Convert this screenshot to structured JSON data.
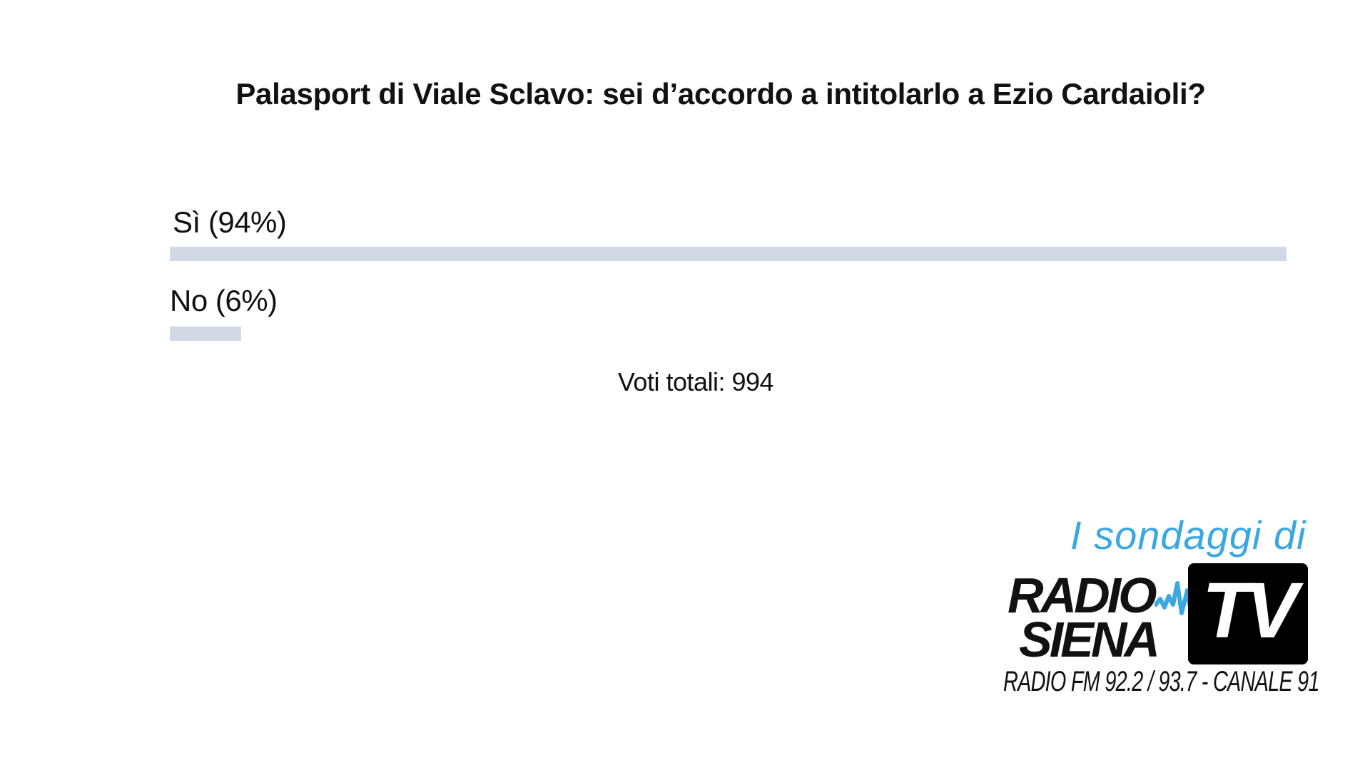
{
  "chart_data": {
    "type": "bar",
    "orientation": "horizontal",
    "title": "Palasport di Viale Sclavo: sei d’accordo a intitolarlo a Ezio Cardaioli?",
    "categories": [
      "Sì (94%)",
      "No (6%)"
    ],
    "values": [
      94,
      6
    ],
    "unit": "%",
    "bar_color": "#d3d9e4",
    "total_label": "Voti totali: 994"
  },
  "branding": {
    "tagline": "I sondaggi di",
    "tagline_color": "#3aa8e0",
    "logo_line1": "RADIO",
    "logo_line2": "SIENA",
    "logo_tv": "TV",
    "logo_sub": "RADIO FM 92.2 / 93.7 - CANALE 91"
  }
}
